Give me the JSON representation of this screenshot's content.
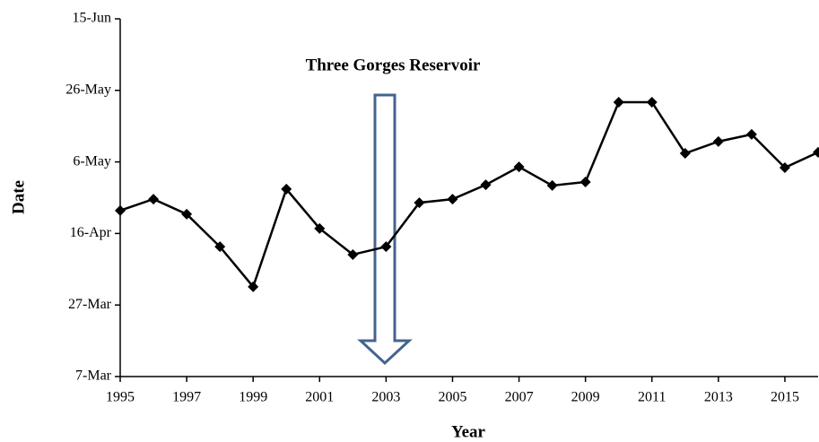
{
  "chart_data": {
    "type": "line",
    "x_label": "Year",
    "y_label": "Date",
    "annotation": "Three Gorges Reservoir",
    "x": [
      1995,
      1996,
      1997,
      1998,
      1999,
      2000,
      2001,
      2002,
      2003,
      2004,
      2005,
      2006,
      2007,
      2008,
      2009,
      2010,
      2011,
      2012,
      2013,
      2014,
      2015,
      2016
    ],
    "values": [
      112.4,
      115.6,
      111.4,
      102.3,
      91.1,
      118.4,
      107.4,
      100.1,
      102.3,
      114.6,
      115.6,
      119.6,
      124.6,
      119.4,
      120.4,
      142.7,
      142.7,
      128.4,
      131.7,
      133.7,
      124.4,
      128.7
    ],
    "color": "#000000",
    "xlim": [
      1995,
      2016
    ],
    "xticks": [
      1995,
      1997,
      1999,
      2001,
      2003,
      2005,
      2007,
      2009,
      2011,
      2013,
      2015
    ],
    "ylim": [
      66,
      166
    ],
    "yticks": [
      {
        "value": 66,
        "label": "7-Mar"
      },
      {
        "value": 86,
        "label": "27-Mar"
      },
      {
        "value": 106,
        "label": "16-Apr"
      },
      {
        "value": 126,
        "label": "6-May"
      },
      {
        "value": 146,
        "label": "26-May"
      },
      {
        "value": 166,
        "label": "15-Jun"
      }
    ]
  }
}
